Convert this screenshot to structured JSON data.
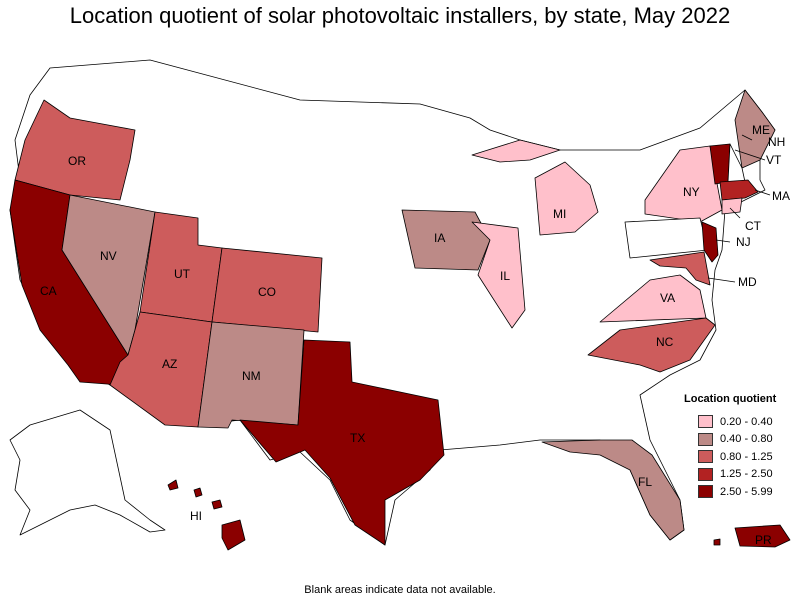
{
  "title": "Location quotient of solar photovoltaic installers, by state, May 2022",
  "footnote": "Blank areas indicate data not available.",
  "legend": {
    "title": "Location quotient",
    "items": [
      {
        "label": "0.20 - 0.40",
        "color": "#ffc0cb"
      },
      {
        "label": "0.40 - 0.80",
        "color": "#bc8a87"
      },
      {
        "label": "0.80 - 1.25",
        "color": "#cd5c5c"
      },
      {
        "label": "1.25 - 2.50",
        "color": "#b22222"
      },
      {
        "label": "2.50 - 5.99",
        "color": "#8b0000"
      }
    ]
  },
  "states": {
    "OR": "OR",
    "CA": "CA",
    "NV": "NV",
    "UT": "UT",
    "AZ": "AZ",
    "CO": "CO",
    "NM": "NM",
    "TX": "TX",
    "IA": "IA",
    "IL": "IL",
    "MI": "MI",
    "NY": "NY",
    "ME": "ME",
    "VT": "VT",
    "NH": "NH",
    "MA": "MA",
    "CT": "CT",
    "NJ": "NJ",
    "MD": "MD",
    "VA": "VA",
    "NC": "NC",
    "FL": "FL",
    "HI": "HI",
    "PR": "PR"
  }
}
